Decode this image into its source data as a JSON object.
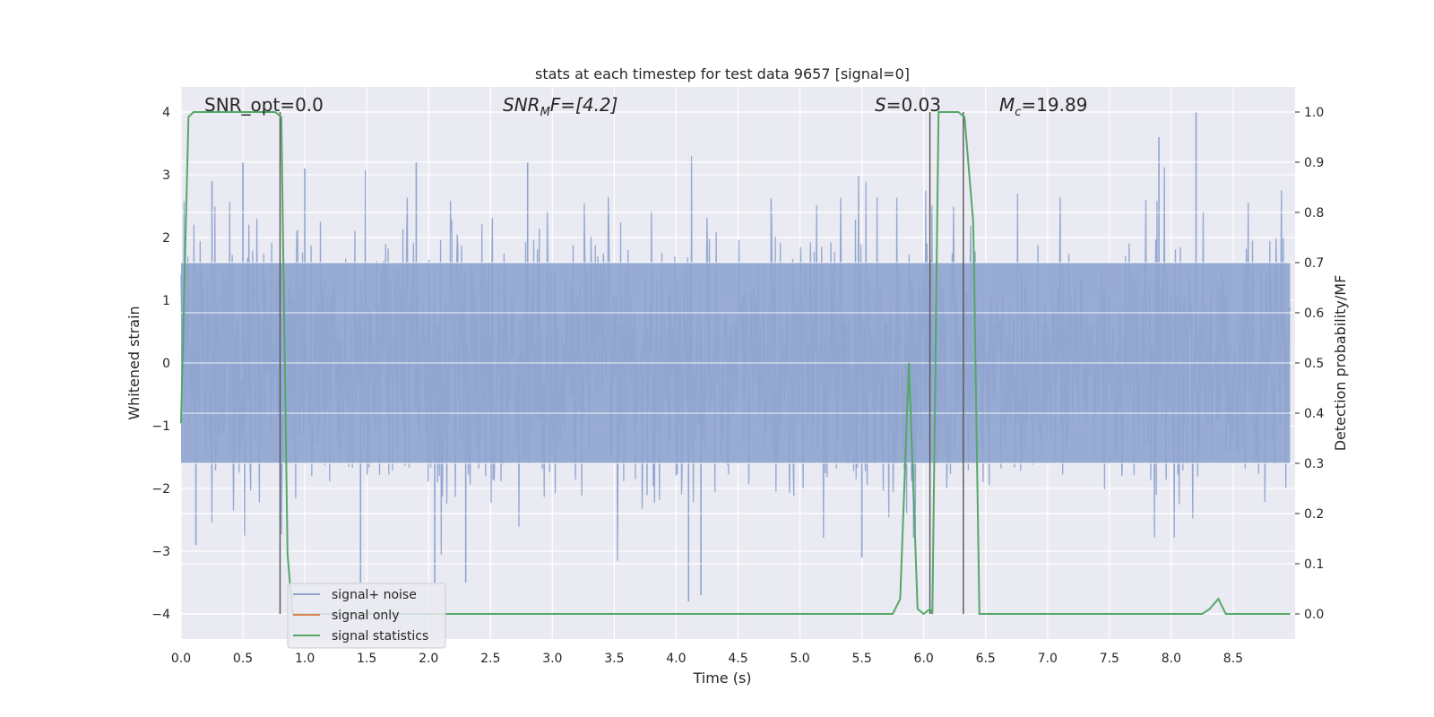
{
  "chart_data": {
    "type": "line",
    "title": "stats at each timestep for test data 9657 [signal=0]",
    "xlabel": "Time (s)",
    "ylabel": "Whitened strain",
    "ylabel_right": "Detection probability/MF",
    "xlim": [
      0.0,
      9.0
    ],
    "ylim": [
      -4.4,
      4.4
    ],
    "ylim_right": [
      -0.05,
      1.05
    ],
    "x_ticks": [
      "0.0",
      "0.5",
      "1.0",
      "1.5",
      "2.0",
      "2.5",
      "3.0",
      "3.5",
      "4.0",
      "4.5",
      "5.0",
      "5.5",
      "6.0",
      "6.5",
      "7.0",
      "7.5",
      "8.0",
      "8.5"
    ],
    "y_ticks": [
      "4",
      "3",
      "2",
      "1",
      "0",
      "−1",
      "−2",
      "−3",
      "−4"
    ],
    "y_ticks_right": [
      "1.0",
      "0.9",
      "0.8",
      "0.7",
      "0.6",
      "0.5",
      "0.4",
      "0.3",
      "0.2",
      "0.1",
      "0.0"
    ],
    "grid": true,
    "legend_position": "lower-left",
    "legend": [
      {
        "label": "signal+ noise",
        "color": "#8fa4cf"
      },
      {
        "label": "signal only",
        "color": "#dd8452"
      },
      {
        "label": "signal statistics",
        "color": "#55a868"
      }
    ],
    "annotations": {
      "snr_opt": "SNR_opt=0.0",
      "snr_mf_base": "SNR",
      "snr_mf_sub": "M",
      "snr_mf_rest": "F=[4.2]",
      "s_label": "S",
      "s_value": "=0.03",
      "mc_base": "M",
      "mc_sub": "c",
      "mc_value": "=19.89"
    },
    "noise_series": {
      "name": "signal+ noise",
      "description_envelope_typical": 1.6,
      "peaks": [
        {
          "x": 0.25,
          "y": 2.9
        },
        {
          "x": 0.5,
          "y": 3.2
        },
        {
          "x": 1.0,
          "y": 3.1
        },
        {
          "x": 1.9,
          "y": 3.2
        },
        {
          "x": 2.8,
          "y": 3.2
        },
        {
          "x": 8.2,
          "y": 4.0
        },
        {
          "x": 7.9,
          "y": 3.6
        },
        {
          "x": 1.45,
          "y": -3.5
        },
        {
          "x": 2.05,
          "y": -3.5
        },
        {
          "x": 2.3,
          "y": -3.5
        },
        {
          "x": 4.1,
          "y": -3.8
        },
        {
          "x": 4.2,
          "y": -3.7
        },
        {
          "x": 0.12,
          "y": -2.9
        },
        {
          "x": 5.5,
          "y": -3.1
        }
      ]
    },
    "stat_series": {
      "name": "signal statistics",
      "color": "#55a868",
      "x": [
        0.0,
        0.06,
        0.1,
        0.3,
        0.6,
        0.76,
        0.81,
        0.86,
        0.9,
        1.0,
        2.0,
        3.0,
        4.0,
        5.0,
        5.75,
        5.81,
        5.88,
        5.95,
        6.0,
        6.05,
        6.07,
        6.12,
        6.2,
        6.28,
        6.33,
        6.4,
        6.45,
        6.5,
        7.0,
        8.0,
        8.25,
        8.31,
        8.38,
        8.44,
        8.5,
        8.96
      ],
      "y": [
        0.38,
        0.99,
        1.0,
        1.0,
        1.0,
        1.0,
        0.99,
        0.12,
        0.0,
        0.0,
        0.0,
        0.0,
        0.0,
        0.0,
        0.0,
        0.03,
        0.5,
        0.01,
        0.0,
        0.01,
        0.0,
        1.0,
        1.0,
        1.0,
        0.99,
        0.78,
        0.0,
        0.0,
        0.0,
        0.0,
        0.0,
        0.01,
        0.03,
        0.0,
        0.0,
        0.0
      ]
    },
    "vertical_lines_x": [
      0.8,
      6.05,
      6.32
    ],
    "vertical_line_color": "#555555"
  }
}
